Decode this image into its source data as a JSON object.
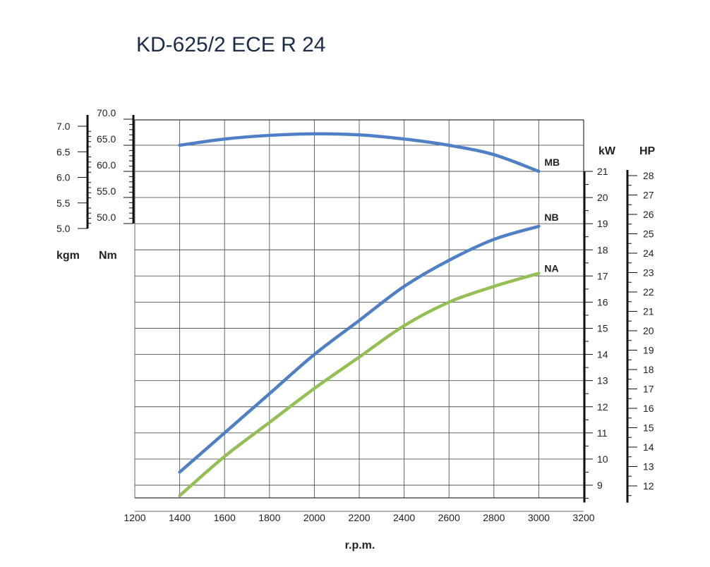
{
  "chart_data": {
    "type": "line",
    "title": "KD-625/2 ECE R 24",
    "xlabel": "r.p.m.",
    "xlim": [
      1200,
      3200
    ],
    "x_ticks": [
      1200,
      1400,
      1600,
      1800,
      2000,
      2200,
      2400,
      2600,
      2800,
      3000,
      3200
    ],
    "torque_axes": {
      "kgm": {
        "label": "kgm",
        "ticks": [
          "5.0",
          "5.5",
          "6.0",
          "6.5",
          "7.0"
        ],
        "values": [
          5.0,
          5.5,
          6.0,
          6.5,
          7.0
        ]
      },
      "nm": {
        "label": "Nm",
        "ticks": [
          "50.0",
          "55.0",
          "60.0",
          "65.0",
          "70.0"
        ],
        "values": [
          50,
          55,
          60,
          65,
          70
        ]
      }
    },
    "power_axes": {
      "kw": {
        "label": "kW",
        "ticks": [
          "9",
          "10",
          "11",
          "12",
          "13",
          "14",
          "15",
          "16",
          "17",
          "18",
          "19",
          "20",
          "21"
        ]
      },
      "hp": {
        "label": "HP",
        "ticks": [
          "12",
          "13",
          "14",
          "15",
          "16",
          "17",
          "18",
          "19",
          "20",
          "21",
          "22",
          "23",
          "24",
          "25",
          "26",
          "27",
          "28"
        ]
      }
    },
    "series": [
      {
        "name": "MB",
        "axis": "Nm",
        "color": "#4f7fc6",
        "x": [
          1400,
          1600,
          1800,
          2000,
          2200,
          2400,
          2600,
          2800,
          3000
        ],
        "y": [
          65.0,
          66.2,
          66.9,
          67.2,
          67.0,
          66.2,
          65.0,
          63.2,
          60.0
        ]
      },
      {
        "name": "NB",
        "axis": "kW",
        "color": "#4f7fc6",
        "x": [
          1400,
          1600,
          1800,
          2000,
          2200,
          2400,
          2600,
          2800,
          3000
        ],
        "y": [
          9.5,
          11.0,
          12.5,
          14.0,
          15.3,
          16.6,
          17.6,
          18.4,
          18.9
        ]
      },
      {
        "name": "NA",
        "axis": "kW",
        "color": "#93bf55",
        "x": [
          1400,
          1600,
          1800,
          2000,
          2200,
          2400,
          2600,
          2800,
          3000
        ],
        "y": [
          8.6,
          10.1,
          11.4,
          12.7,
          13.9,
          15.1,
          16.0,
          16.6,
          17.1
        ]
      }
    ]
  }
}
